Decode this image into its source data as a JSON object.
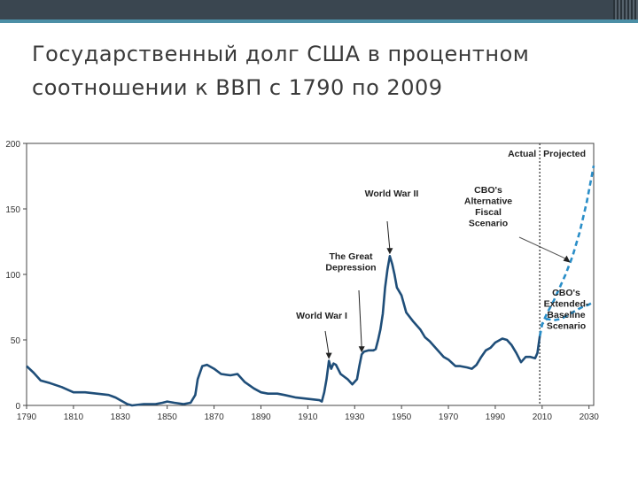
{
  "slide": {
    "title_line1": "Государственный долг США в процентном",
    "title_line2": "соотношении к ВВП с 1790 по 2009"
  },
  "colors": {
    "series": "#1f4e79",
    "projection": "#2a8ec8",
    "divider": "#555555",
    "topbar": "#3a4650",
    "accent": "#4c8fa6"
  },
  "chart_data": {
    "type": "line",
    "title": "",
    "xlabel": "",
    "ylabel": "",
    "xlim": [
      1790,
      2032
    ],
    "ylim": [
      0,
      200
    ],
    "grid": false,
    "x_ticks": [
      1790,
      1810,
      1830,
      1850,
      1870,
      1890,
      1910,
      1930,
      1950,
      1970,
      1990,
      2010,
      2030
    ],
    "y_ticks": [
      0,
      50,
      100,
      150,
      200
    ],
    "regions": {
      "left": "Actual",
      "right": "Projected",
      "divider_x": 2009
    },
    "series": [
      {
        "style": "solid",
        "points": [
          [
            1790,
            30
          ],
          [
            1793,
            25
          ],
          [
            1796,
            19
          ],
          [
            1800,
            17
          ],
          [
            1805,
            14
          ],
          [
            1810,
            10
          ],
          [
            1815,
            10
          ],
          [
            1820,
            9
          ],
          [
            1825,
            8
          ],
          [
            1828,
            6
          ],
          [
            1830,
            4
          ],
          [
            1833,
            1
          ],
          [
            1835,
            0
          ],
          [
            1840,
            1
          ],
          [
            1845,
            1
          ],
          [
            1848,
            2
          ],
          [
            1850,
            3
          ],
          [
            1853,
            2
          ],
          [
            1857,
            1
          ],
          [
            1860,
            2
          ],
          [
            1862,
            8
          ],
          [
            1863,
            20
          ],
          [
            1865,
            30
          ],
          [
            1867,
            31
          ],
          [
            1870,
            28
          ],
          [
            1873,
            24
          ],
          [
            1877,
            23
          ],
          [
            1880,
            24
          ],
          [
            1883,
            18
          ],
          [
            1887,
            13
          ],
          [
            1890,
            10
          ],
          [
            1893,
            9
          ],
          [
            1897,
            9
          ],
          [
            1900,
            8
          ],
          [
            1905,
            6
          ],
          [
            1910,
            5
          ],
          [
            1915,
            4
          ],
          [
            1916,
            3
          ],
          [
            1917,
            10
          ],
          [
            1918,
            20
          ],
          [
            1919,
            34
          ],
          [
            1920,
            28
          ],
          [
            1921,
            32
          ],
          [
            1922,
            31
          ],
          [
            1924,
            24
          ],
          [
            1927,
            20
          ],
          [
            1929,
            16
          ],
          [
            1931,
            20
          ],
          [
            1932,
            30
          ],
          [
            1933,
            39
          ],
          [
            1934,
            41
          ],
          [
            1936,
            42
          ],
          [
            1938,
            42
          ],
          [
            1939,
            43
          ],
          [
            1940,
            50
          ],
          [
            1941,
            58
          ],
          [
            1942,
            70
          ],
          [
            1943,
            90
          ],
          [
            1944,
            104
          ],
          [
            1945,
            114
          ],
          [
            1946,
            108
          ],
          [
            1947,
            100
          ],
          [
            1948,
            90
          ],
          [
            1950,
            84
          ],
          [
            1952,
            71
          ],
          [
            1955,
            64
          ],
          [
            1958,
            58
          ],
          [
            1960,
            52
          ],
          [
            1962,
            49
          ],
          [
            1965,
            43
          ],
          [
            1968,
            37
          ],
          [
            1970,
            35
          ],
          [
            1973,
            30
          ],
          [
            1975,
            30
          ],
          [
            1978,
            29
          ],
          [
            1980,
            28
          ],
          [
            1982,
            31
          ],
          [
            1984,
            37
          ],
          [
            1986,
            42
          ],
          [
            1988,
            44
          ],
          [
            1990,
            48
          ],
          [
            1993,
            51
          ],
          [
            1995,
            50
          ],
          [
            1997,
            46
          ],
          [
            1999,
            40
          ],
          [
            2001,
            33
          ],
          [
            2003,
            37
          ],
          [
            2005,
            37
          ],
          [
            2007,
            36
          ],
          [
            2008,
            40
          ],
          [
            2009,
            53
          ]
        ]
      },
      {
        "name": "CBO's Alternative Fiscal Scenario",
        "style": "dashed",
        "points": [
          [
            2009,
            53
          ],
          [
            2010,
            62
          ],
          [
            2012,
            70
          ],
          [
            2015,
            80
          ],
          [
            2018,
            92
          ],
          [
            2020,
            100
          ],
          [
            2023,
            114
          ],
          [
            2026,
            132
          ],
          [
            2029,
            155
          ],
          [
            2032,
            183
          ]
        ]
      },
      {
        "name": "CBO's Extended-Baseline Scenario",
        "style": "dashed",
        "points": [
          [
            2009,
            53
          ],
          [
            2010,
            62
          ],
          [
            2012,
            66
          ],
          [
            2015,
            65
          ],
          [
            2018,
            66
          ],
          [
            2021,
            69
          ],
          [
            2024,
            72
          ],
          [
            2027,
            75
          ],
          [
            2030,
            77
          ],
          [
            2032,
            79
          ]
        ]
      }
    ],
    "annotations": [
      {
        "lines": [
          "World War II"
        ],
        "year": 1945,
        "value": 114
      },
      {
        "lines": [
          "The Great",
          "Depression"
        ],
        "year": 1933,
        "value": 39
      },
      {
        "lines": [
          "World War I"
        ],
        "year": 1919,
        "value": 34
      },
      {
        "lines": [
          "CBO's",
          "Alternative",
          "Fiscal",
          "Scenario"
        ],
        "year": 2022,
        "value": 109
      },
      {
        "lines": [
          "CBO's",
          "Extended-",
          "Baseline",
          "Scenario"
        ],
        "year": null,
        "value": null
      }
    ]
  }
}
